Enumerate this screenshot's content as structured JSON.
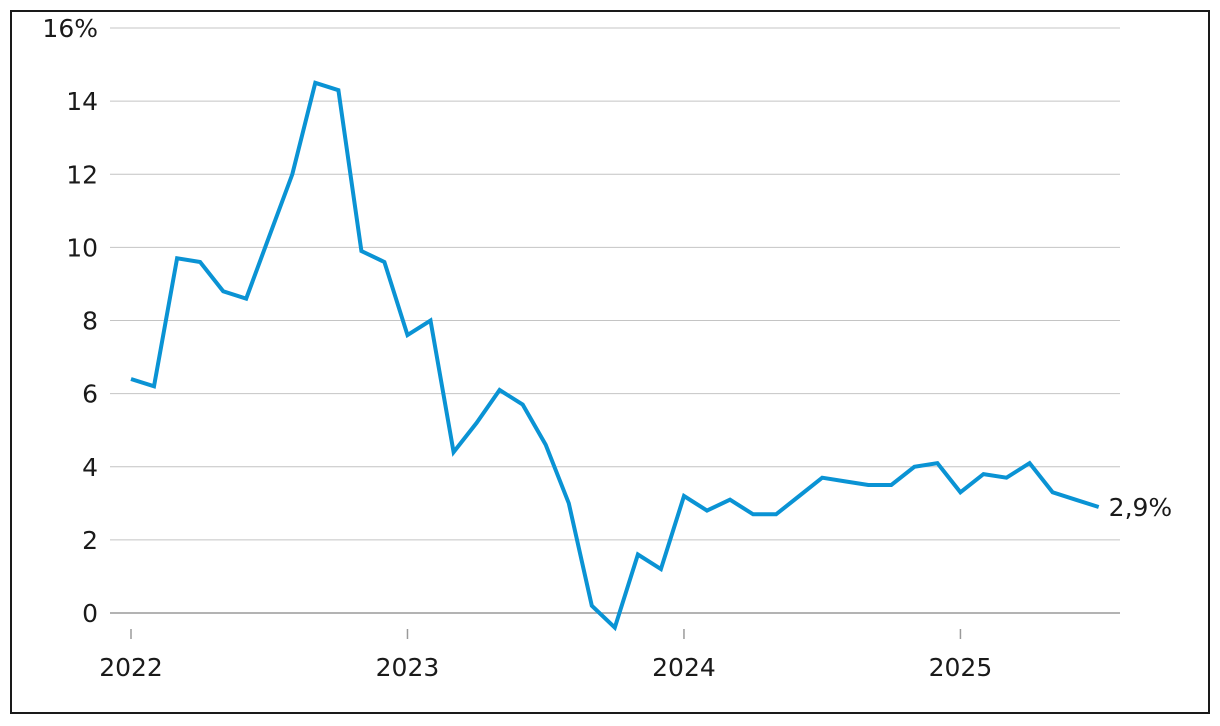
{
  "chart_data": {
    "type": "line",
    "title": "",
    "xlabel": "",
    "ylabel": "",
    "ylim": [
      0,
      16
    ],
    "y_ticks": [
      {
        "value": 0,
        "label": "0"
      },
      {
        "value": 2,
        "label": "2"
      },
      {
        "value": 4,
        "label": "4"
      },
      {
        "value": 6,
        "label": "6"
      },
      {
        "value": 8,
        "label": "8"
      },
      {
        "value": 10,
        "label": "10"
      },
      {
        "value": 12,
        "label": "12"
      },
      {
        "value": 14,
        "label": "14"
      },
      {
        "value": 16,
        "label": "16%"
      }
    ],
    "x_ticks": [
      {
        "date": "2022-01",
        "label": "2022"
      },
      {
        "date": "2023-01",
        "label": "2023"
      },
      {
        "date": "2024-01",
        "label": "2024"
      },
      {
        "date": "2025-01",
        "label": "2025"
      }
    ],
    "grid": "horizontal",
    "series": [
      {
        "color": "#0a93d4",
        "x": [
          "2022-01",
          "2022-02",
          "2022-03",
          "2022-04",
          "2022-05",
          "2022-06",
          "2022-07",
          "2022-08",
          "2022-09",
          "2022-10",
          "2022-11",
          "2022-12",
          "2023-01",
          "2023-02",
          "2023-03",
          "2023-04",
          "2023-05",
          "2023-06",
          "2023-07",
          "2023-08",
          "2023-09",
          "2023-10",
          "2023-11",
          "2023-12",
          "2024-01",
          "2024-02",
          "2024-03",
          "2024-04",
          "2024-05",
          "2024-06",
          "2024-07",
          "2024-08",
          "2024-09",
          "2024-10",
          "2024-11",
          "2024-12",
          "2025-01",
          "2025-02",
          "2025-03",
          "2025-04",
          "2025-05",
          "2025-06",
          "2025-07"
        ],
        "values": [
          6.4,
          6.2,
          9.7,
          9.6,
          8.8,
          8.6,
          10.3,
          12.0,
          14.5,
          14.3,
          9.9,
          9.6,
          7.6,
          8.0,
          4.4,
          5.2,
          6.1,
          5.7,
          4.6,
          3.0,
          0.2,
          -0.4,
          1.6,
          1.2,
          3.2,
          2.8,
          3.1,
          2.7,
          2.7,
          3.2,
          3.7,
          3.6,
          3.5,
          3.5,
          4.0,
          4.1,
          3.3,
          3.8,
          3.7,
          4.1,
          3.3,
          3.1,
          2.9
        ]
      }
    ],
    "end_label": "2,9%"
  }
}
